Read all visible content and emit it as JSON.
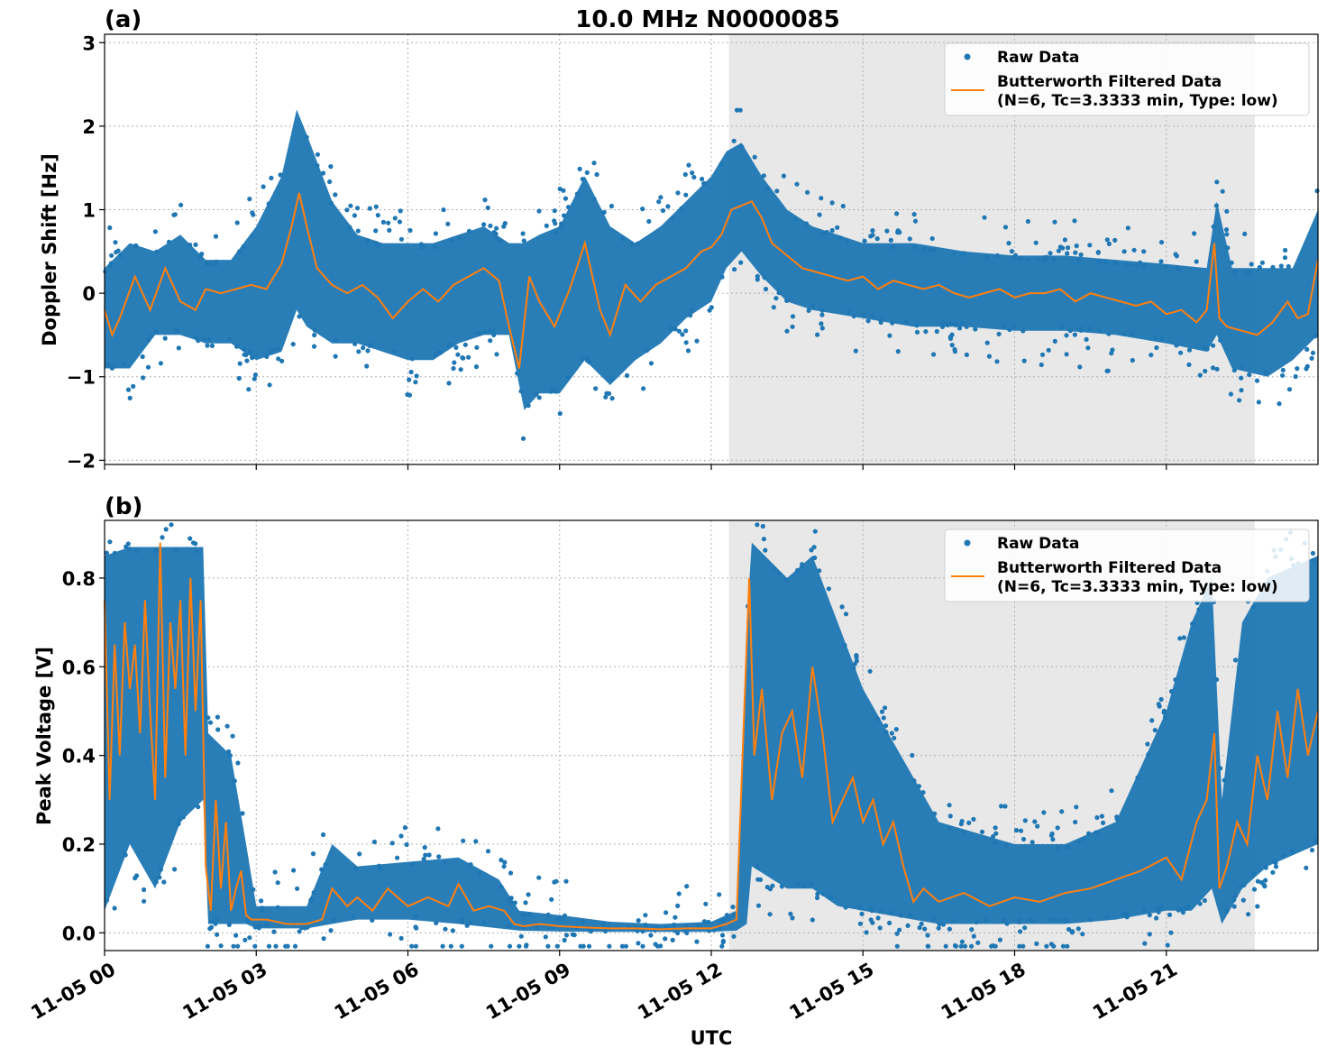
{
  "figure": {
    "title": "10.0 MHz N0000085",
    "xlabel": "UTC",
    "x_ticks": [
      "11-05 00",
      "11-05 03",
      "11-05 06",
      "11-05 09",
      "11-05 12",
      "11-05 15",
      "11-05 18",
      "11-05 21"
    ],
    "colors": {
      "raw": "#1f77b4",
      "filtered": "#ff7f0e",
      "shade": "#e8e8e8",
      "grid": "#b0b0b0"
    }
  },
  "chart_data": [
    {
      "type": "scatter",
      "panel_label": "(a)",
      "ylabel": "Doppler Shift [Hz]",
      "x_unit": "hours UTC on 11-05",
      "xlim": [
        0,
        24
      ],
      "ylim": [
        -2.05,
        3.1
      ],
      "y_ticks": [
        "−2",
        "−1",
        "0",
        "1",
        "2",
        "3"
      ],
      "y_tick_values": [
        -2,
        -1,
        0,
        1,
        2,
        3
      ],
      "grid": true,
      "legend_position": "top-right",
      "shaded_interval": [
        12.35,
        22.75
      ],
      "series": [
        {
          "name": "Raw Data",
          "style": "points"
        },
        {
          "name": "Butterworth Filtered Data",
          "name_line2": "(N=6, Tc=3.3333 min, Type: low)",
          "style": "line"
        }
      ],
      "filtered": {
        "x": [
          0,
          0.15,
          0.3,
          0.6,
          0.9,
          1.2,
          1.5,
          1.8,
          2.0,
          2.3,
          2.6,
          2.9,
          3.2,
          3.5,
          3.7,
          3.85,
          4.0,
          4.2,
          4.5,
          4.8,
          5.1,
          5.4,
          5.7,
          6.0,
          6.3,
          6.6,
          6.9,
          7.2,
          7.5,
          7.8,
          8.0,
          8.2,
          8.4,
          8.6,
          8.9,
          9.2,
          9.5,
          9.8,
          10.0,
          10.3,
          10.6,
          10.9,
          11.2,
          11.5,
          11.8,
          12.0,
          12.2,
          12.4,
          12.6,
          12.8,
          13.0,
          13.2,
          13.5,
          13.8,
          14.1,
          14.4,
          14.7,
          15.0,
          15.3,
          15.6,
          15.9,
          16.2,
          16.5,
          16.8,
          17.1,
          17.4,
          17.7,
          18.0,
          18.3,
          18.6,
          18.9,
          19.2,
          19.5,
          19.8,
          20.1,
          20.4,
          20.7,
          21.0,
          21.3,
          21.6,
          21.8,
          21.95,
          22.05,
          22.2,
          22.5,
          22.8,
          23.1,
          23.4,
          23.6,
          23.8,
          24.0
        ],
        "y": [
          -0.2,
          -0.5,
          -0.3,
          0.2,
          -0.2,
          0.3,
          -0.1,
          -0.2,
          0.05,
          0.0,
          0.05,
          0.1,
          0.05,
          0.35,
          0.8,
          1.2,
          0.8,
          0.3,
          0.1,
          0.0,
          0.1,
          -0.05,
          -0.3,
          -0.1,
          0.05,
          -0.1,
          0.1,
          0.2,
          0.3,
          0.15,
          -0.4,
          -0.9,
          0.2,
          -0.1,
          -0.4,
          0.05,
          0.6,
          -0.2,
          -0.5,
          0.1,
          -0.1,
          0.1,
          0.2,
          0.3,
          0.5,
          0.55,
          0.7,
          1.0,
          1.05,
          1.1,
          0.9,
          0.6,
          0.45,
          0.3,
          0.25,
          0.2,
          0.15,
          0.2,
          0.05,
          0.15,
          0.1,
          0.05,
          0.1,
          0.0,
          -0.05,
          0.0,
          0.05,
          -0.05,
          0.0,
          0.0,
          0.05,
          -0.1,
          0.0,
          -0.05,
          -0.1,
          -0.15,
          -0.1,
          -0.25,
          -0.2,
          -0.35,
          -0.2,
          0.6,
          -0.3,
          -0.4,
          -0.45,
          -0.5,
          -0.35,
          -0.1,
          -0.3,
          -0.25,
          0.4
        ]
      },
      "raw_envelope": {
        "x": [
          0,
          0.5,
          1.0,
          1.5,
          2.0,
          2.5,
          3.0,
          3.5,
          3.8,
          4.0,
          4.5,
          5.0,
          5.5,
          6.0,
          6.5,
          7.0,
          7.5,
          8.0,
          8.3,
          8.6,
          9.0,
          9.5,
          10.0,
          10.5,
          11.0,
          11.5,
          12.0,
          12.3,
          12.6,
          13.0,
          13.5,
          14.0,
          15.0,
          16.0,
          17.0,
          18.0,
          19.0,
          20.0,
          21.0,
          21.8,
          22.0,
          22.3,
          23.0,
          23.5,
          24.0
        ],
        "upper": [
          0.3,
          0.6,
          0.5,
          0.7,
          0.4,
          0.4,
          0.8,
          1.4,
          2.2,
          1.9,
          1.1,
          0.7,
          0.6,
          0.6,
          0.6,
          0.7,
          0.8,
          0.6,
          0.6,
          0.7,
          0.8,
          1.4,
          0.8,
          0.6,
          0.8,
          1.1,
          1.4,
          1.7,
          1.8,
          1.4,
          1.0,
          0.8,
          0.6,
          0.6,
          0.5,
          0.45,
          0.45,
          0.4,
          0.35,
          0.3,
          1.1,
          0.3,
          0.3,
          0.3,
          1.0
        ],
        "lower": [
          -0.9,
          -0.9,
          -0.5,
          -0.5,
          -0.6,
          -0.6,
          -0.8,
          -0.7,
          -0.2,
          -0.4,
          -0.6,
          -0.6,
          -0.7,
          -0.8,
          -0.8,
          -0.6,
          -0.5,
          -0.5,
          -1.4,
          -1.2,
          -1.2,
          -0.8,
          -1.1,
          -0.8,
          -0.6,
          -0.3,
          -0.1,
          0.3,
          0.5,
          0.2,
          -0.1,
          -0.2,
          -0.3,
          -0.4,
          -0.4,
          -0.45,
          -0.45,
          -0.5,
          -0.6,
          -0.7,
          -0.5,
          -0.9,
          -1.0,
          -0.8,
          -0.5
        ]
      }
    },
    {
      "type": "scatter",
      "panel_label": "(b)",
      "ylabel": "Peak Voltage [V]",
      "x_unit": "hours UTC on 11-05",
      "xlim": [
        0,
        24
      ],
      "ylim": [
        -0.04,
        0.93
      ],
      "y_ticks": [
        "0.0",
        "0.2",
        "0.4",
        "0.6",
        "0.8"
      ],
      "y_tick_values": [
        0.0,
        0.2,
        0.4,
        0.6,
        0.8
      ],
      "grid": true,
      "legend_position": "top-right",
      "shaded_interval": [
        12.35,
        22.75
      ],
      "series": [
        {
          "name": "Raw Data",
          "style": "points"
        },
        {
          "name": "Butterworth Filtered Data",
          "name_line2": "(N=6, Tc=3.3333 min, Type: low)",
          "style": "line"
        }
      ],
      "filtered": {
        "x": [
          0,
          0.1,
          0.2,
          0.3,
          0.4,
          0.5,
          0.6,
          0.7,
          0.8,
          0.9,
          1.0,
          1.1,
          1.2,
          1.3,
          1.4,
          1.5,
          1.6,
          1.7,
          1.8,
          1.9,
          2.0,
          2.1,
          2.2,
          2.3,
          2.4,
          2.5,
          2.6,
          2.7,
          2.8,
          2.9,
          3.2,
          3.6,
          4.0,
          4.3,
          4.5,
          4.8,
          5.0,
          5.3,
          5.6,
          6.0,
          6.4,
          6.8,
          7.0,
          7.3,
          7.6,
          7.9,
          8.1,
          8.3,
          8.6,
          9.0,
          9.5,
          10.0,
          10.5,
          11.0,
          11.5,
          12.0,
          12.3,
          12.5,
          12.65,
          12.75,
          12.85,
          13.0,
          13.2,
          13.4,
          13.6,
          13.8,
          14.0,
          14.2,
          14.4,
          14.6,
          14.8,
          15.0,
          15.2,
          15.4,
          15.6,
          15.8,
          16.0,
          16.2,
          16.5,
          17.0,
          17.5,
          18.0,
          18.5,
          19.0,
          19.5,
          20.0,
          20.5,
          21.0,
          21.3,
          21.6,
          21.8,
          21.95,
          22.05,
          22.2,
          22.4,
          22.6,
          22.8,
          23.0,
          23.2,
          23.4,
          23.6,
          23.8,
          24.0
        ],
        "y": [
          0.75,
          0.3,
          0.65,
          0.4,
          0.7,
          0.55,
          0.65,
          0.45,
          0.75,
          0.5,
          0.3,
          0.88,
          0.35,
          0.7,
          0.55,
          0.75,
          0.4,
          0.8,
          0.5,
          0.75,
          0.15,
          0.05,
          0.3,
          0.1,
          0.25,
          0.05,
          0.1,
          0.14,
          0.04,
          0.03,
          0.03,
          0.02,
          0.02,
          0.03,
          0.1,
          0.06,
          0.08,
          0.05,
          0.1,
          0.06,
          0.08,
          0.06,
          0.11,
          0.05,
          0.06,
          0.05,
          0.02,
          0.015,
          0.02,
          0.015,
          0.012,
          0.01,
          0.01,
          0.008,
          0.01,
          0.01,
          0.02,
          0.03,
          0.5,
          0.8,
          0.4,
          0.55,
          0.3,
          0.45,
          0.5,
          0.35,
          0.6,
          0.45,
          0.25,
          0.3,
          0.35,
          0.25,
          0.3,
          0.2,
          0.25,
          0.15,
          0.07,
          0.1,
          0.07,
          0.09,
          0.06,
          0.08,
          0.07,
          0.09,
          0.1,
          0.12,
          0.14,
          0.17,
          0.12,
          0.25,
          0.3,
          0.45,
          0.1,
          0.15,
          0.25,
          0.2,
          0.4,
          0.3,
          0.5,
          0.35,
          0.55,
          0.4,
          0.5
        ]
      },
      "raw_envelope": {
        "x": [
          0,
          0.5,
          1.0,
          1.5,
          1.95,
          2.05,
          2.5,
          2.8,
          3.0,
          4.0,
          4.5,
          5.0,
          6.0,
          7.0,
          7.8,
          8.2,
          9.0,
          10.0,
          11.0,
          12.0,
          12.5,
          12.7,
          12.8,
          13.5,
          14.0,
          14.5,
          15.0,
          16.0,
          16.5,
          18.0,
          19.0,
          20.0,
          21.0,
          21.5,
          21.9,
          22.1,
          22.5,
          23.0,
          24.0
        ],
        "upper": [
          0.85,
          0.87,
          0.87,
          0.87,
          0.87,
          0.45,
          0.4,
          0.2,
          0.06,
          0.06,
          0.2,
          0.15,
          0.16,
          0.17,
          0.12,
          0.05,
          0.04,
          0.025,
          0.02,
          0.025,
          0.05,
          0.7,
          0.88,
          0.8,
          0.85,
          0.7,
          0.55,
          0.35,
          0.25,
          0.2,
          0.2,
          0.25,
          0.5,
          0.7,
          0.8,
          0.3,
          0.7,
          0.8,
          0.85
        ],
        "lower": [
          0.05,
          0.2,
          0.1,
          0.25,
          0.3,
          0.02,
          0.02,
          0.02,
          0.01,
          0.01,
          0.02,
          0.03,
          0.03,
          0.02,
          0.01,
          0.005,
          0.003,
          0.002,
          0.002,
          0.002,
          0.005,
          0.02,
          0.15,
          0.1,
          0.1,
          0.06,
          0.05,
          0.03,
          0.02,
          0.02,
          0.02,
          0.03,
          0.05,
          0.05,
          0.1,
          0.02,
          0.1,
          0.15,
          0.2
        ]
      }
    }
  ]
}
